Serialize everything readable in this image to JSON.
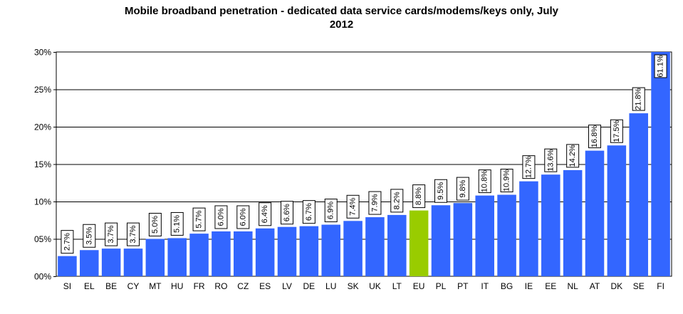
{
  "chart_data": {
    "type": "bar",
    "title_lines": [
      "Mobile broadband penetration - dedicated data service cards/modems/keys  only,  July",
      "2012"
    ],
    "categories": [
      "SI",
      "EL",
      "BE",
      "CY",
      "MT",
      "HU",
      "FR",
      "RO",
      "CZ",
      "ES",
      "LV",
      "DE",
      "LU",
      "SK",
      "UK",
      "LT",
      "EU",
      "PL",
      "PT",
      "IT",
      "BG",
      "IE",
      "EE",
      "NL",
      "AT",
      "DK",
      "SE",
      "FI"
    ],
    "values": [
      2.7,
      3.5,
      3.7,
      3.7,
      5.0,
      5.1,
      5.7,
      6.0,
      6.0,
      6.4,
      6.6,
      6.7,
      6.9,
      7.4,
      7.9,
      8.2,
      8.8,
      9.5,
      9.8,
      10.8,
      10.9,
      12.7,
      13.6,
      14.2,
      16.8,
      17.5,
      21.8,
      61.1
    ],
    "data_labels": [
      "2.7%",
      "3.5%",
      "3.7%",
      "3.7%",
      "5.0%",
      "5.1%",
      "5.7%",
      "6.0%",
      "6.0%",
      "6.4%",
      "6.6%",
      "6.7%",
      "6.9%",
      "7.4%",
      "7.9%",
      "8.2%",
      "8.8%",
      "9.5%",
      "9.8%",
      "10.8%",
      "10.9%",
      "12.7%",
      "13.6%",
      "14.2%",
      "16.8%",
      "17.5%",
      "21.8%",
      "61.1%"
    ],
    "ylim": [
      0,
      30
    ],
    "yticks": [
      0,
      5,
      10,
      15,
      20,
      25,
      30
    ],
    "ytick_labels": [
      "00%",
      "05%",
      "10%",
      "15%",
      "20%",
      "25%",
      "30%"
    ],
    "grid": true,
    "highlight_category": "EU",
    "colors": {
      "bar": "#3366ff",
      "highlight": "#99cc00",
      "grid": "#000000"
    }
  }
}
